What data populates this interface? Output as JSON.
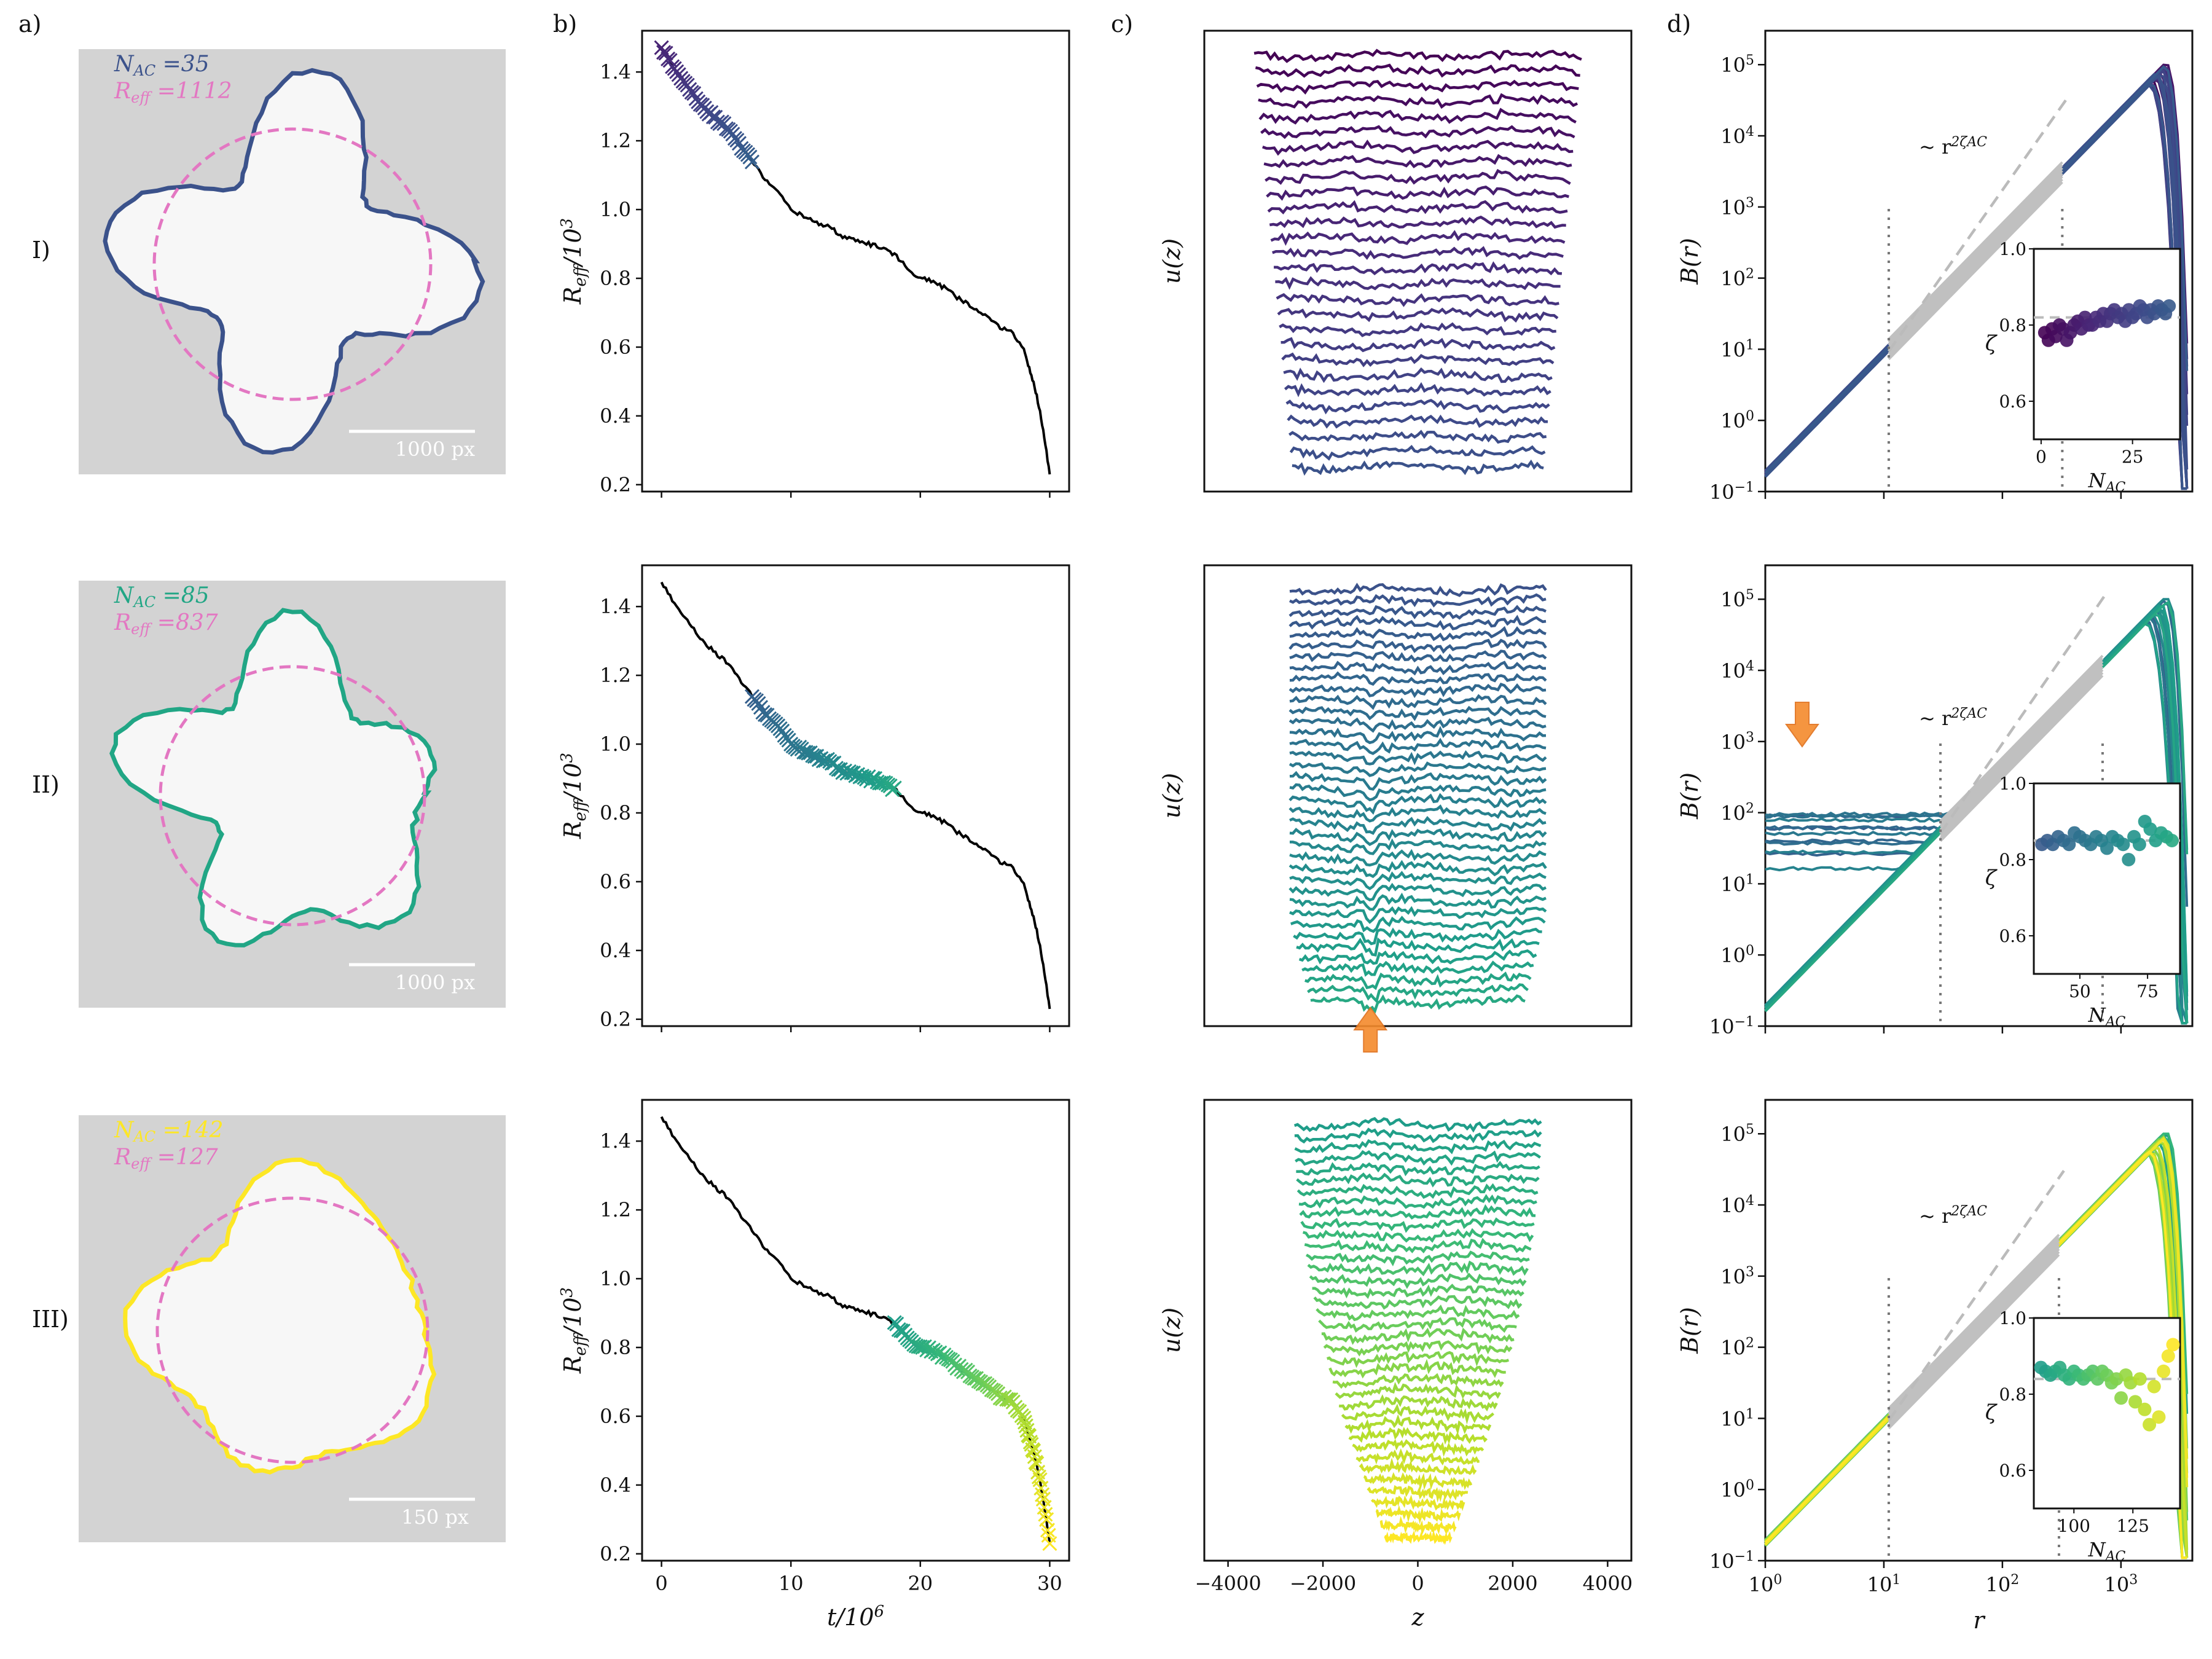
{
  "panel_labels": [
    "a)",
    "b)",
    "c)",
    "d)"
  ],
  "row_labels": [
    "I)",
    "II)",
    "III)"
  ],
  "colors": {
    "row1": "#3b528b",
    "row2": "#21a685",
    "row3": "#fde725",
    "fit_circle": "#e377c2",
    "image_bg": "#d3d3d3",
    "fit_line": "#c0c0c0",
    "arrow": "#f58a2c"
  },
  "a": {
    "rows": [
      {
        "nac_label": "N_AC =35",
        "reff_label": "R_eff =1112",
        "scalebar": "1000 px",
        "contour_color": "#3b528b"
      },
      {
        "nac_label": "N_AC =85",
        "reff_label": "R_eff =837",
        "scalebar": "1000 px",
        "contour_color": "#21a685"
      },
      {
        "nac_label": "N_AC =142",
        "reff_label": "R_eff =127",
        "scalebar": "150 px",
        "contour_color": "#fde725"
      }
    ]
  },
  "chart_data": [
    {
      "panel": "b",
      "type": "line",
      "xlabel": "t/10^6",
      "ylabel": "R_eff/10^3",
      "xlim": [
        -1.5,
        31.5
      ],
      "ylim": [
        0.18,
        1.52
      ],
      "xticks": [
        0,
        10,
        20,
        30
      ],
      "yticks": [
        0.2,
        0.4,
        0.6,
        0.8,
        1.0,
        1.2,
        1.4
      ],
      "x": [
        0,
        1,
        2,
        3,
        4,
        5,
        6,
        7,
        8,
        9,
        10,
        11,
        12,
        13,
        14,
        15,
        16,
        17,
        18,
        19,
        20,
        21,
        22,
        23,
        24,
        25,
        26,
        27,
        28,
        28.5,
        29,
        29.5,
        30
      ],
      "y": [
        1.47,
        1.41,
        1.36,
        1.31,
        1.27,
        1.24,
        1.19,
        1.14,
        1.09,
        1.05,
        1.0,
        0.98,
        0.96,
        0.95,
        0.92,
        0.91,
        0.9,
        0.89,
        0.87,
        0.83,
        0.8,
        0.79,
        0.77,
        0.74,
        0.72,
        0.69,
        0.66,
        0.65,
        0.59,
        0.53,
        0.46,
        0.36,
        0.23
      ],
      "highlight_ranges": [
        [
          0,
          7
        ],
        [
          7,
          18
        ],
        [
          18,
          30
        ]
      ]
    },
    {
      "panel": "c",
      "type": "line",
      "xlabel": "z",
      "ylabel": "u(z)",
      "xlim": [
        -4500,
        4500
      ],
      "xticks": [
        -4000,
        -2000,
        0,
        2000,
        4000
      ],
      "rows": [
        {
          "n_profiles": 28,
          "z_range": [
            -4200,
            4200
          ]
        },
        {
          "n_profiles": 38,
          "z_range": [
            -2600,
            2600
          ]
        },
        {
          "n_profiles": 38,
          "z_range": [
            -2600,
            2600
          ]
        }
      ]
    },
    {
      "panel": "d",
      "type": "line",
      "xlabel": "r",
      "ylabel": "B(r)",
      "scale": "log-log",
      "xlim": [
        1,
        4000
      ],
      "ylim": [
        0.1,
        300000
      ],
      "xtick_labels": [
        "10^0",
        "10^1",
        "10^2",
        "10^3"
      ],
      "ytick_labels": [
        "10^-1",
        "10^0",
        "10^1",
        "10^2",
        "10^3",
        "10^4",
        "10^5"
      ],
      "fit_annotation": "~ r^{2 zeta_AC}",
      "rows": [
        {
          "fit_range": [
            11,
            320
          ],
          "inset": {
            "xlabel": "N_AC",
            "ylabel": "zeta",
            "xticks": [
              0,
              25
            ],
            "yticks": [
              0.6,
              0.8,
              1.0
            ],
            "zeta_mean": 0.82,
            "points_x": [
              1,
              2,
              3,
              4,
              5,
              6,
              7,
              8,
              9,
              10,
              11,
              12,
              13,
              14,
              15,
              16,
              17,
              18,
              19,
              20,
              21,
              22,
              23,
              24,
              25,
              26,
              27,
              28,
              29,
              30,
              31,
              32,
              33,
              34,
              35
            ],
            "points_y": [
              0.78,
              0.76,
              0.79,
              0.77,
              0.8,
              0.79,
              0.76,
              0.78,
              0.8,
              0.81,
              0.79,
              0.82,
              0.8,
              0.8,
              0.82,
              0.81,
              0.83,
              0.81,
              0.83,
              0.84,
              0.82,
              0.83,
              0.81,
              0.84,
              0.82,
              0.83,
              0.85,
              0.84,
              0.82,
              0.84,
              0.83,
              0.85,
              0.84,
              0.83,
              0.85
            ]
          }
        },
        {
          "fit_range": [
            30,
            700
          ],
          "inset": {
            "xlabel": "N_AC",
            "ylabel": "zeta",
            "xticks": [
              50,
              75
            ],
            "yticks": [
              0.6,
              0.8,
              1.0
            ],
            "zeta_mean": 0.85,
            "points_x": [
              36,
              38,
              40,
              42,
              44,
              46,
              48,
              50,
              52,
              54,
              56,
              58,
              60,
              62,
              64,
              66,
              68,
              70,
              72,
              74,
              76,
              78,
              80,
              82,
              84
            ],
            "points_y": [
              0.84,
              0.85,
              0.84,
              0.86,
              0.85,
              0.84,
              0.87,
              0.86,
              0.85,
              0.84,
              0.86,
              0.85,
              0.83,
              0.86,
              0.85,
              0.84,
              0.8,
              0.86,
              0.84,
              0.9,
              0.88,
              0.85,
              0.87,
              0.86,
              0.85
            ]
          }
        },
        {
          "fit_range": [
            11,
            300
          ],
          "inset": {
            "xlabel": "N_AC",
            "ylabel": "zeta",
            "xticks": [
              100,
              125
            ],
            "yticks": [
              0.6,
              0.8,
              1.0
            ],
            "zeta_mean": 0.84,
            "points_x": [
              86,
              88,
              90,
              92,
              94,
              96,
              98,
              100,
              102,
              104,
              106,
              108,
              110,
              112,
              114,
              116,
              118,
              120,
              122,
              124,
              126,
              128,
              130,
              132,
              134,
              136,
              138,
              140,
              142
            ],
            "points_y": [
              0.87,
              0.86,
              0.85,
              0.86,
              0.87,
              0.85,
              0.84,
              0.86,
              0.85,
              0.84,
              0.85,
              0.86,
              0.84,
              0.86,
              0.85,
              0.83,
              0.84,
              0.79,
              0.85,
              0.83,
              0.78,
              0.84,
              0.76,
              0.72,
              0.82,
              0.74,
              0.86,
              0.9,
              0.93
            ]
          }
        }
      ]
    }
  ]
}
